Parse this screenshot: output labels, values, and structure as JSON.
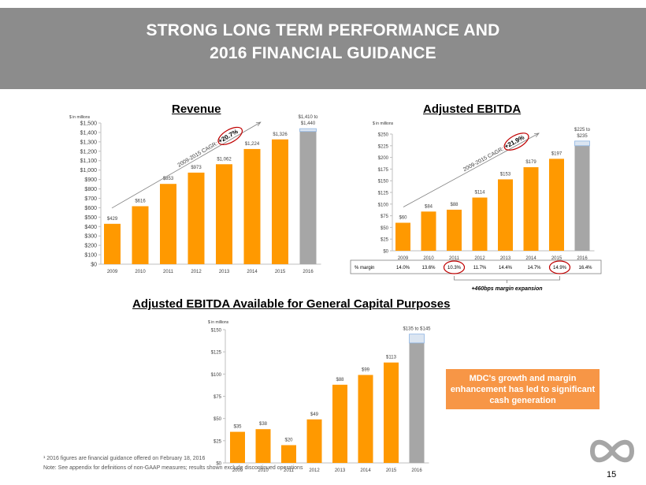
{
  "header": {
    "title_line1": "STRONG LONG TERM PERFORMANCE AND",
    "title_line2": "2016 FINANCIAL GUIDANCE"
  },
  "colors": {
    "header_bg": "#8c8c8c",
    "bar_actual": "#ff9900",
    "bar_guidance": "#a6a6a6",
    "guidance_range": "#dbe5f1",
    "highlight_circle": "#c00000",
    "callout_bg": "#f79646"
  },
  "chart_data": [
    {
      "type": "bar",
      "title": "Revenue",
      "unit_label": "$ in millions",
      "categories": [
        "2009",
        "2010",
        "2011",
        "2012",
        "2013",
        "2014",
        "2015",
        "2016"
      ],
      "values": [
        429,
        616,
        853,
        973,
        1062,
        1224,
        1326,
        1410
      ],
      "value_labels": [
        "$429",
        "$616",
        "$853",
        "$973",
        "$1,062",
        "$1,224",
        "$1,326",
        "$1,410 to $1,440"
      ],
      "guidance_range": {
        "category": "2016",
        "low": 1410,
        "high": 1440
      },
      "ylim": [
        0,
        1500
      ],
      "yticks": [
        0,
        100,
        200,
        300,
        400,
        500,
        600,
        700,
        800,
        900,
        1000,
        1100,
        1200,
        1300,
        1400,
        1500
      ],
      "ytick_labels": [
        "$0",
        "$100",
        "$200",
        "$300",
        "$400",
        "$500",
        "$600",
        "$700",
        "$800",
        "$900",
        "$1,000",
        "$1,100",
        "$1,200",
        "$1,300",
        "$1,400",
        "$1,500"
      ],
      "annotation": {
        "text": "2009-2015 CAGR:",
        "highlight": "+20.7%"
      },
      "grid": false
    },
    {
      "type": "bar",
      "title": "Adjusted EBITDA",
      "unit_label": "$ in millions",
      "categories": [
        "2009",
        "2010",
        "2011",
        "2012",
        "2013",
        "2014",
        "2015",
        "2016"
      ],
      "values": [
        60,
        84,
        88,
        114,
        153,
        179,
        197,
        225
      ],
      "value_labels": [
        "$60",
        "$84",
        "$88",
        "$114",
        "$153",
        "$179",
        "$197",
        "$225 to $235"
      ],
      "guidance_range": {
        "category": "2016",
        "low": 225,
        "high": 235
      },
      "ylim": [
        0,
        250
      ],
      "yticks": [
        0,
        25,
        50,
        75,
        100,
        125,
        150,
        175,
        200,
        225,
        250
      ],
      "ytick_labels": [
        "$0",
        "$25",
        "$50",
        "$75",
        "$100",
        "$125",
        "$150",
        "$175",
        "$200",
        "$225",
        "$250"
      ],
      "annotation": {
        "text": "2009-2015 CAGR:",
        "highlight": "+21.9%"
      },
      "margin_row": {
        "label": "% margin",
        "values": [
          "14.0%",
          "13.6%",
          "10.3%",
          "11.7%",
          "14.4%",
          "14.7%",
          "14.9%",
          "16.4%"
        ],
        "circled": [
          "2011",
          "2015"
        ],
        "bracket_note": "+460bps margin expansion"
      },
      "grid": false
    },
    {
      "type": "bar",
      "title": "Adjusted EBITDA Available for General Capital Purposes",
      "unit_label": "$ in millions",
      "categories": [
        "2009",
        "2010",
        "2011",
        "2012",
        "2013",
        "2014",
        "2015",
        "2016"
      ],
      "values": [
        35,
        38,
        20,
        49,
        88,
        99,
        113,
        135
      ],
      "value_labels": [
        "$35",
        "$38",
        "$20",
        "$49",
        "$88",
        "$99",
        "$113",
        "$135 to $145"
      ],
      "guidance_range": {
        "category": "2016",
        "low": 135,
        "high": 145
      },
      "ylim": [
        0,
        150
      ],
      "yticks": [
        0,
        25,
        50,
        75,
        100,
        125,
        150
      ],
      "ytick_labels": [
        "$0",
        "$25",
        "$50",
        "$75",
        "$100",
        "$125",
        "$150"
      ],
      "grid": false
    }
  ],
  "callout": {
    "text": "MDC's growth and margin enhancement has led to significant cash generation"
  },
  "footnotes": {
    "line1": "¹ 2016 figures are financial guidance offered on February 18, 2016",
    "line2": "Note: See appendix for definitions of non-GAAP measures; results shown exclude discontinued operations"
  },
  "logo": "infinity-logo",
  "page_number": "15"
}
